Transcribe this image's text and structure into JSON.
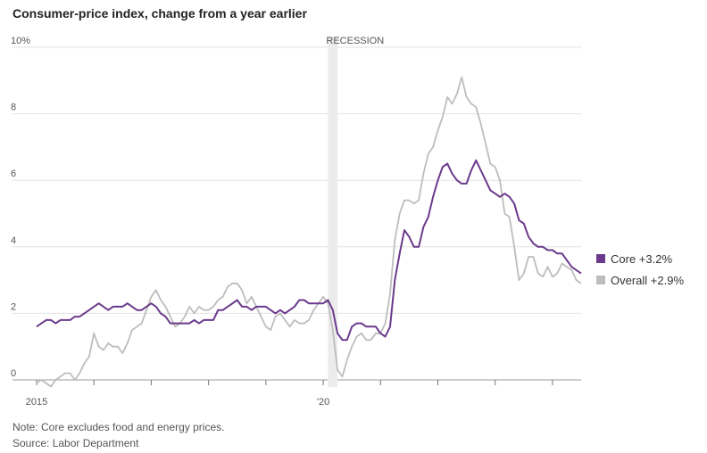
{
  "chart_data": {
    "type": "line",
    "title": "Consumer-price index, change from a year earlier",
    "y_unit_label": "10%",
    "ylim": [
      0,
      10
    ],
    "y_ticks": [
      {
        "value": 10,
        "label": "10%"
      },
      {
        "value": 8,
        "label": "8"
      },
      {
        "value": 6,
        "label": "6"
      },
      {
        "value": 4,
        "label": "4"
      },
      {
        "value": 2,
        "label": "2"
      },
      {
        "value": 0,
        "label": "0"
      }
    ],
    "x_range": [
      "2015-01",
      "2024-07"
    ],
    "x_tick_labels": [
      {
        "date": "2015-01",
        "label": "2015"
      },
      {
        "date": "2020-01",
        "label": "'20"
      }
    ],
    "x_minor_ticks": [
      "2016-01",
      "2017-01",
      "2018-01",
      "2019-01",
      "2020-01",
      "2021-01",
      "2022-01",
      "2023-01",
      "2024-01"
    ],
    "recession": {
      "label": "RECESSION",
      "start": "2020-02",
      "end": "2020-04"
    },
    "grid": true,
    "legend_position": "right",
    "series": [
      {
        "name": "Core +3.2%",
        "color": "#6b3a8c",
        "points": [
          [
            "2015-01",
            1.6
          ],
          [
            "2015-03",
            1.8
          ],
          [
            "2015-04",
            1.8
          ],
          [
            "2015-05",
            1.7
          ],
          [
            "2015-06",
            1.8
          ],
          [
            "2015-08",
            1.8
          ],
          [
            "2015-09",
            1.9
          ],
          [
            "2015-10",
            1.9
          ],
          [
            "2015-12",
            2.1
          ],
          [
            "2016-02",
            2.3
          ],
          [
            "2016-03",
            2.2
          ],
          [
            "2016-04",
            2.1
          ],
          [
            "2016-05",
            2.2
          ],
          [
            "2016-07",
            2.2
          ],
          [
            "2016-08",
            2.3
          ],
          [
            "2016-10",
            2.1
          ],
          [
            "2016-11",
            2.1
          ],
          [
            "2017-01",
            2.3
          ],
          [
            "2017-02",
            2.2
          ],
          [
            "2017-03",
            2.0
          ],
          [
            "2017-04",
            1.9
          ],
          [
            "2017-05",
            1.7
          ],
          [
            "2017-08",
            1.7
          ],
          [
            "2017-09",
            1.7
          ],
          [
            "2017-10",
            1.8
          ],
          [
            "2017-11",
            1.7
          ],
          [
            "2017-12",
            1.8
          ],
          [
            "2018-02",
            1.8
          ],
          [
            "2018-03",
            2.1
          ],
          [
            "2018-04",
            2.1
          ],
          [
            "2018-07",
            2.4
          ],
          [
            "2018-08",
            2.2
          ],
          [
            "2018-09",
            2.2
          ],
          [
            "2018-10",
            2.1
          ],
          [
            "2018-11",
            2.2
          ],
          [
            "2019-01",
            2.2
          ],
          [
            "2019-03",
            2.0
          ],
          [
            "2019-04",
            2.1
          ],
          [
            "2019-05",
            2.0
          ],
          [
            "2019-07",
            2.2
          ],
          [
            "2019-08",
            2.4
          ],
          [
            "2019-09",
            2.4
          ],
          [
            "2019-10",
            2.3
          ],
          [
            "2019-12",
            2.3
          ],
          [
            "2020-01",
            2.3
          ],
          [
            "2020-02",
            2.4
          ],
          [
            "2020-03",
            2.1
          ],
          [
            "2020-04",
            1.4
          ],
          [
            "2020-05",
            1.2
          ],
          [
            "2020-06",
            1.2
          ],
          [
            "2020-07",
            1.6
          ],
          [
            "2020-08",
            1.7
          ],
          [
            "2020-09",
            1.7
          ],
          [
            "2020-10",
            1.6
          ],
          [
            "2020-12",
            1.6
          ],
          [
            "2021-01",
            1.4
          ],
          [
            "2021-02",
            1.3
          ],
          [
            "2021-03",
            1.6
          ],
          [
            "2021-04",
            3.0
          ],
          [
            "2021-05",
            3.8
          ],
          [
            "2021-06",
            4.5
          ],
          [
            "2021-07",
            4.3
          ],
          [
            "2021-08",
            4.0
          ],
          [
            "2021-09",
            4.0
          ],
          [
            "2021-10",
            4.6
          ],
          [
            "2021-11",
            4.9
          ],
          [
            "2021-12",
            5.5
          ],
          [
            "2022-01",
            6.0
          ],
          [
            "2022-02",
            6.4
          ],
          [
            "2022-03",
            6.5
          ],
          [
            "2022-04",
            6.2
          ],
          [
            "2022-05",
            6.0
          ],
          [
            "2022-06",
            5.9
          ],
          [
            "2022-07",
            5.9
          ],
          [
            "2022-08",
            6.3
          ],
          [
            "2022-09",
            6.6
          ],
          [
            "2022-10",
            6.3
          ],
          [
            "2022-11",
            6.0
          ],
          [
            "2022-12",
            5.7
          ],
          [
            "2023-01",
            5.6
          ],
          [
            "2023-02",
            5.5
          ],
          [
            "2023-03",
            5.6
          ],
          [
            "2023-04",
            5.5
          ],
          [
            "2023-05",
            5.3
          ],
          [
            "2023-06",
            4.8
          ],
          [
            "2023-07",
            4.7
          ],
          [
            "2023-08",
            4.3
          ],
          [
            "2023-09",
            4.1
          ],
          [
            "2023-10",
            4.0
          ],
          [
            "2023-11",
            4.0
          ],
          [
            "2023-12",
            3.9
          ],
          [
            "2024-01",
            3.9
          ],
          [
            "2024-02",
            3.8
          ],
          [
            "2024-03",
            3.8
          ],
          [
            "2024-04",
            3.6
          ],
          [
            "2024-05",
            3.4
          ],
          [
            "2024-06",
            3.3
          ],
          [
            "2024-07",
            3.2
          ]
        ]
      },
      {
        "name": "Overall +2.9%",
        "color": "#bdbdbd",
        "points": [
          [
            "2015-01",
            -0.1
          ],
          [
            "2015-02",
            0.0
          ],
          [
            "2015-03",
            -0.1
          ],
          [
            "2015-04",
            -0.2
          ],
          [
            "2015-05",
            0.0
          ],
          [
            "2015-06",
            0.1
          ],
          [
            "2015-07",
            0.2
          ],
          [
            "2015-08",
            0.2
          ],
          [
            "2015-09",
            0.0
          ],
          [
            "2015-10",
            0.2
          ],
          [
            "2015-11",
            0.5
          ],
          [
            "2015-12",
            0.7
          ],
          [
            "2016-01",
            1.4
          ],
          [
            "2016-02",
            1.0
          ],
          [
            "2016-03",
            0.9
          ],
          [
            "2016-04",
            1.1
          ],
          [
            "2016-05",
            1.0
          ],
          [
            "2016-06",
            1.0
          ],
          [
            "2016-07",
            0.8
          ],
          [
            "2016-08",
            1.1
          ],
          [
            "2016-09",
            1.5
          ],
          [
            "2016-10",
            1.6
          ],
          [
            "2016-11",
            1.7
          ],
          [
            "2016-12",
            2.1
          ],
          [
            "2017-01",
            2.5
          ],
          [
            "2017-02",
            2.7
          ],
          [
            "2017-03",
            2.4
          ],
          [
            "2017-04",
            2.2
          ],
          [
            "2017-05",
            1.9
          ],
          [
            "2017-06",
            1.6
          ],
          [
            "2017-07",
            1.7
          ],
          [
            "2017-08",
            1.9
          ],
          [
            "2017-09",
            2.2
          ],
          [
            "2017-10",
            2.0
          ],
          [
            "2017-11",
            2.2
          ],
          [
            "2017-12",
            2.1
          ],
          [
            "2018-01",
            2.1
          ],
          [
            "2018-02",
            2.2
          ],
          [
            "2018-03",
            2.4
          ],
          [
            "2018-04",
            2.5
          ],
          [
            "2018-05",
            2.8
          ],
          [
            "2018-06",
            2.9
          ],
          [
            "2018-07",
            2.9
          ],
          [
            "2018-08",
            2.7
          ],
          [
            "2018-09",
            2.3
          ],
          [
            "2018-10",
            2.5
          ],
          [
            "2018-11",
            2.2
          ],
          [
            "2018-12",
            1.9
          ],
          [
            "2019-01",
            1.6
          ],
          [
            "2019-02",
            1.5
          ],
          [
            "2019-03",
            1.9
          ],
          [
            "2019-04",
            2.0
          ],
          [
            "2019-05",
            1.8
          ],
          [
            "2019-06",
            1.6
          ],
          [
            "2019-07",
            1.8
          ],
          [
            "2019-08",
            1.7
          ],
          [
            "2019-09",
            1.7
          ],
          [
            "2019-10",
            1.8
          ],
          [
            "2019-11",
            2.1
          ],
          [
            "2019-12",
            2.3
          ],
          [
            "2020-01",
            2.5
          ],
          [
            "2020-02",
            2.3
          ],
          [
            "2020-03",
            1.5
          ],
          [
            "2020-04",
            0.3
          ],
          [
            "2020-05",
            0.1
          ],
          [
            "2020-06",
            0.6
          ],
          [
            "2020-07",
            1.0
          ],
          [
            "2020-08",
            1.3
          ],
          [
            "2020-09",
            1.4
          ],
          [
            "2020-10",
            1.2
          ],
          [
            "2020-11",
            1.2
          ],
          [
            "2020-12",
            1.4
          ],
          [
            "2021-01",
            1.4
          ],
          [
            "2021-02",
            1.7
          ],
          [
            "2021-03",
            2.6
          ],
          [
            "2021-04",
            4.2
          ],
          [
            "2021-05",
            5.0
          ],
          [
            "2021-06",
            5.4
          ],
          [
            "2021-07",
            5.4
          ],
          [
            "2021-08",
            5.3
          ],
          [
            "2021-09",
            5.4
          ],
          [
            "2021-10",
            6.2
          ],
          [
            "2021-11",
            6.8
          ],
          [
            "2021-12",
            7.0
          ],
          [
            "2022-01",
            7.5
          ],
          [
            "2022-02",
            7.9
          ],
          [
            "2022-03",
            8.5
          ],
          [
            "2022-04",
            8.3
          ],
          [
            "2022-05",
            8.6
          ],
          [
            "2022-06",
            9.1
          ],
          [
            "2022-07",
            8.5
          ],
          [
            "2022-08",
            8.3
          ],
          [
            "2022-09",
            8.2
          ],
          [
            "2022-10",
            7.7
          ],
          [
            "2022-11",
            7.1
          ],
          [
            "2022-12",
            6.5
          ],
          [
            "2023-01",
            6.4
          ],
          [
            "2023-02",
            6.0
          ],
          [
            "2023-03",
            5.0
          ],
          [
            "2023-04",
            4.9
          ],
          [
            "2023-05",
            4.0
          ],
          [
            "2023-06",
            3.0
          ],
          [
            "2023-07",
            3.2
          ],
          [
            "2023-08",
            3.7
          ],
          [
            "2023-09",
            3.7
          ],
          [
            "2023-10",
            3.2
          ],
          [
            "2023-11",
            3.1
          ],
          [
            "2023-12",
            3.4
          ],
          [
            "2024-01",
            3.1
          ],
          [
            "2024-02",
            3.2
          ],
          [
            "2024-03",
            3.5
          ],
          [
            "2024-04",
            3.4
          ],
          [
            "2024-05",
            3.3
          ],
          [
            "2024-06",
            3.0
          ],
          [
            "2024-07",
            2.9
          ]
        ]
      }
    ]
  },
  "notes": {
    "note": "Note: Core excludes food and energy prices.",
    "source": "Source: Labor Department"
  }
}
